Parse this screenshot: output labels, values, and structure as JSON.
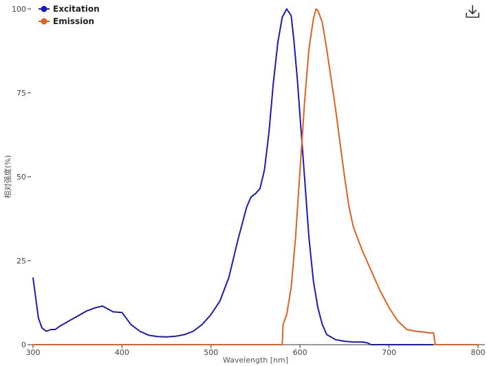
{
  "chart_data": {
    "type": "line",
    "title": "",
    "xlabel": "Wavelength [nm]",
    "ylabel": "相对强度(%)",
    "xlim": [
      300,
      800
    ],
    "ylim": [
      0,
      100
    ],
    "x_ticks": [
      300,
      400,
      500,
      600,
      700,
      800
    ],
    "y_ticks": [
      0,
      25,
      50,
      75,
      100
    ],
    "grid": false,
    "legend_position": "top-left",
    "series": [
      {
        "name": "Excitation",
        "color": "#1a1ab8",
        "x": [
          300,
          303,
          306,
          310,
          315,
          320,
          325,
          330,
          340,
          350,
          360,
          370,
          378,
          385,
          390,
          400,
          410,
          420,
          430,
          440,
          450,
          460,
          470,
          480,
          490,
          500,
          510,
          520,
          530,
          540,
          545,
          550,
          555,
          560,
          565,
          570,
          575,
          580,
          585,
          590,
          593,
          597,
          600,
          605,
          610,
          615,
          620,
          625,
          630,
          640,
          650,
          660,
          670,
          675,
          680,
          700,
          750
        ],
        "values": [
          20,
          14,
          8,
          5,
          4,
          4.5,
          4.5,
          5.5,
          7,
          8.5,
          10,
          11,
          11.5,
          10.5,
          9.8,
          9.6,
          6,
          4,
          2.8,
          2.4,
          2.3,
          2.5,
          3,
          4,
          6,
          9,
          13,
          20,
          31,
          41,
          44,
          45,
          46.5,
          52,
          63,
          78,
          90,
          97.5,
          100,
          98,
          91,
          79,
          68,
          50,
          32,
          19,
          11,
          6,
          3,
          1.5,
          1,
          0.8,
          0.8,
          0.6,
          0,
          0,
          0
        ]
      },
      {
        "name": "Emission",
        "color": "#e0601f",
        "x": [
          300,
          580,
          581,
          585,
          590,
          595,
          600,
          605,
          610,
          615,
          618,
          620,
          625,
          630,
          635,
          640,
          645,
          650,
          655,
          660,
          670,
          680,
          690,
          700,
          710,
          720,
          730,
          740,
          745,
          750,
          752,
          755,
          800
        ],
        "values": [
          0,
          0,
          6,
          9,
          17,
          32,
          52,
          72,
          88,
          97,
          100,
          99.5,
          96,
          88,
          79,
          70,
          60,
          50,
          41,
          35,
          28,
          22,
          16,
          11,
          7,
          4.5,
          4,
          3.7,
          3.5,
          3.5,
          0,
          0,
          0
        ]
      }
    ]
  }
}
